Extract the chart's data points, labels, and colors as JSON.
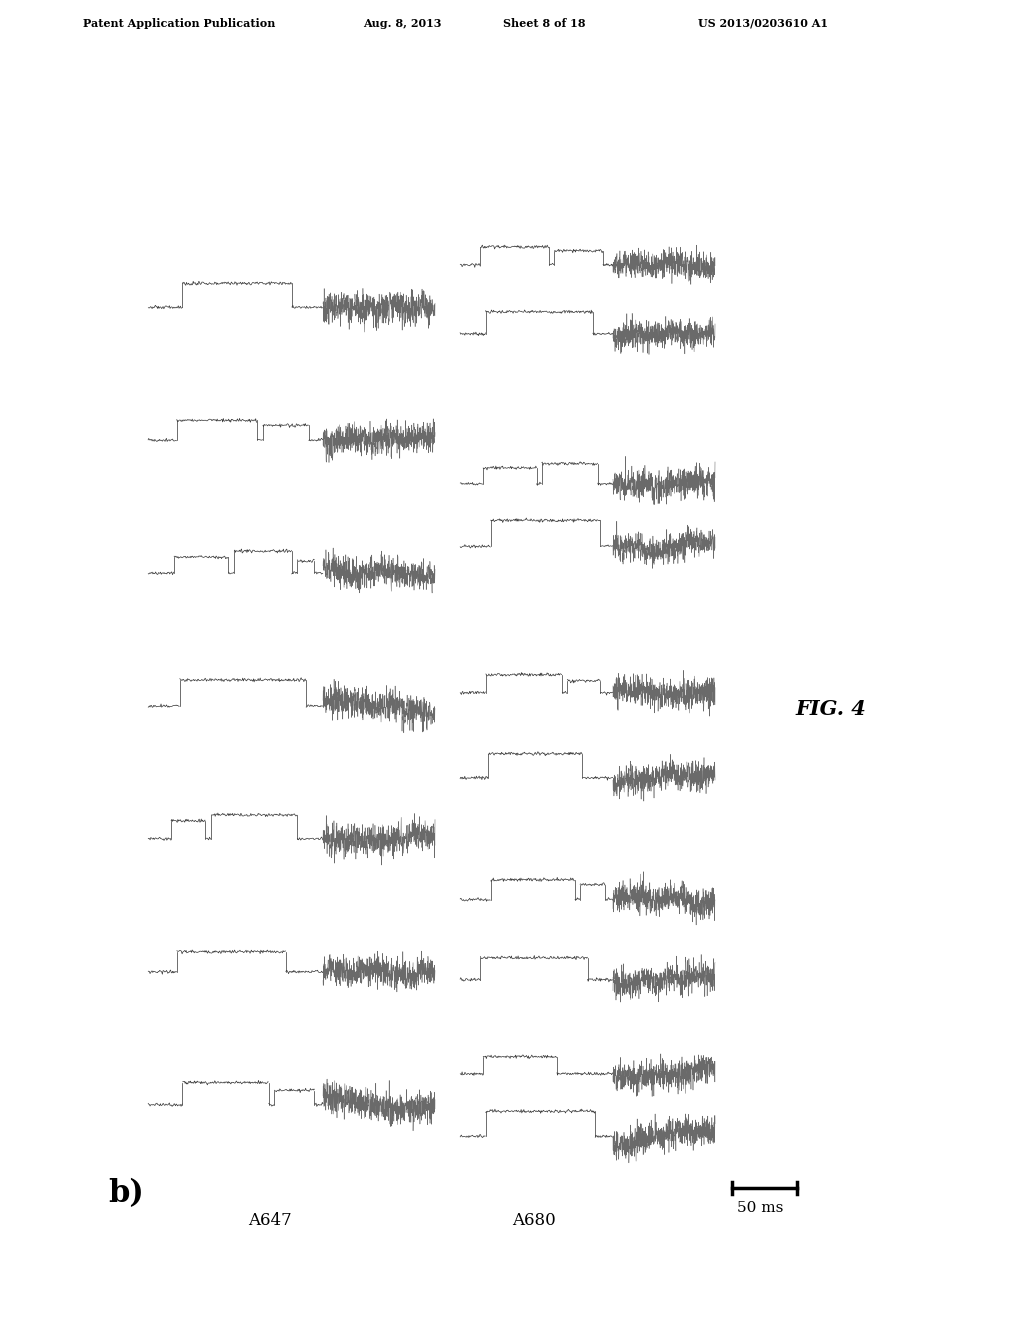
{
  "header_text": "Patent Application Publication",
  "header_date": "Aug. 8, 2013",
  "header_sheet": "Sheet 8 of 18",
  "header_patent": "US 2013/0203610 A1",
  "label_b": "b)",
  "label_A647": "A647",
  "label_A680": "A680",
  "label_fig": "FIG. 4",
  "scalebar_text": "50 ms",
  "bg_color": "#ffffff",
  "trace_color": "#333333",
  "noise_color": "#555555"
}
